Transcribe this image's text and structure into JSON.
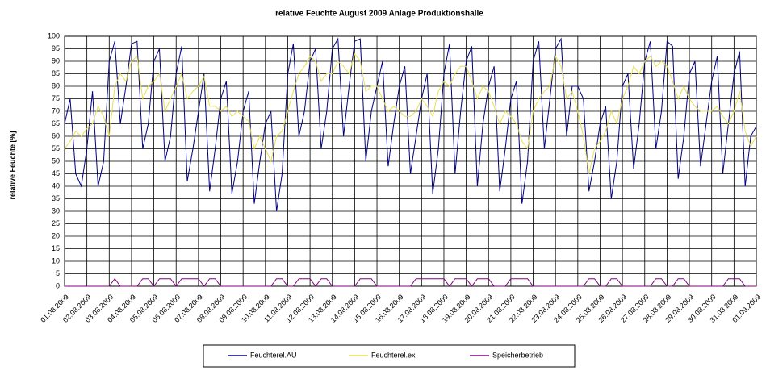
{
  "chart_data": {
    "type": "line",
    "title": "relative Feuchte August 2009 Anlage Produktionshalle",
    "y_label": "relative Feuchte [%]",
    "ylim": [
      0,
      100
    ],
    "yticks": [
      0,
      5,
      10,
      15,
      20,
      25,
      30,
      35,
      40,
      45,
      50,
      55,
      60,
      65,
      70,
      75,
      80,
      85,
      90,
      95,
      100
    ],
    "grid": true,
    "legend": "bottom",
    "categories": [
      "01.08.2009",
      null,
      null,
      null,
      "02.08.2009",
      null,
      null,
      null,
      "03.08.2009",
      null,
      null,
      null,
      "04.08.2009",
      null,
      null,
      null,
      "05.08.2009",
      null,
      null,
      null,
      "06.08.2009",
      null,
      null,
      null,
      "07.08.2009",
      null,
      null,
      null,
      "08.08.2009",
      null,
      null,
      null,
      "09.08.2009",
      null,
      null,
      null,
      "10.08.2009",
      null,
      null,
      null,
      "11.08.2009",
      null,
      null,
      null,
      "12.08.2009",
      null,
      null,
      null,
      "13.08.2009",
      null,
      null,
      null,
      "14.08.2009",
      null,
      null,
      null,
      "15.08.2009",
      null,
      null,
      null,
      "16.08.2009",
      null,
      null,
      null,
      "17.08.2009",
      null,
      null,
      null,
      "18.08.2009",
      null,
      null,
      null,
      "19.08.2009",
      null,
      null,
      null,
      "20.08.2009",
      null,
      null,
      null,
      "21.08.2009",
      null,
      null,
      null,
      "22.08.2009",
      null,
      null,
      null,
      "23.08.2009",
      null,
      null,
      null,
      "24.08.2009",
      null,
      null,
      null,
      "25.08.2009",
      null,
      null,
      null,
      "26.08.2009",
      null,
      null,
      null,
      "27.08.2009",
      null,
      null,
      null,
      "28.08.2009",
      null,
      null,
      null,
      "29.08.2009",
      null,
      null,
      null,
      "30.08.2009",
      null,
      null,
      null,
      "31.08.2009",
      null,
      null,
      null,
      "01.09.2009"
    ],
    "series": [
      {
        "name": "Feuchterel.AU",
        "color": "#000080",
        "values": [
          65,
          75,
          45,
          40,
          55,
          78,
          40,
          50,
          90,
          98,
          65,
          80,
          97,
          98,
          55,
          65,
          90,
          95,
          50,
          60,
          85,
          96,
          42,
          55,
          70,
          85,
          38,
          55,
          75,
          82,
          37,
          50,
          70,
          78,
          33,
          50,
          65,
          70,
          30,
          45,
          85,
          97,
          60,
          70,
          90,
          95,
          55,
          70,
          95,
          99,
          60,
          80,
          98,
          99,
          50,
          70,
          80,
          90,
          48,
          65,
          80,
          88,
          45,
          60,
          75,
          85,
          37,
          55,
          85,
          97,
          45,
          70,
          90,
          96,
          40,
          65,
          80,
          88,
          38,
          55,
          75,
          82,
          33,
          50,
          90,
          98,
          55,
          75,
          95,
          99,
          60,
          80,
          80,
          75,
          38,
          50,
          65,
          72,
          35,
          50,
          80,
          85,
          47,
          65,
          90,
          98,
          55,
          70,
          98,
          96,
          43,
          60,
          85,
          90,
          48,
          65,
          82,
          92,
          45,
          65,
          85,
          94,
          40,
          60,
          64
        ]
      },
      {
        "name": "Feuchterel.ex",
        "color": "#e8e050",
        "values": [
          55,
          58,
          62,
          60,
          63,
          65,
          72,
          68,
          60,
          80,
          85,
          82,
          90,
          92,
          75,
          80,
          82,
          85,
          70,
          75,
          80,
          85,
          75,
          78,
          80,
          84,
          72,
          72,
          70,
          72,
          68,
          70,
          68,
          66,
          55,
          60,
          55,
          50,
          60,
          62,
          70,
          78,
          85,
          88,
          92,
          90,
          82,
          85,
          85,
          90,
          88,
          85,
          93,
          90,
          78,
          80,
          80,
          75,
          70,
          72,
          70,
          68,
          68,
          70,
          75,
          72,
          68,
          78,
          82,
          80,
          85,
          88,
          88,
          82,
          75,
          80,
          78,
          72,
          65,
          70,
          68,
          65,
          58,
          55,
          70,
          75,
          78,
          80,
          92,
          88,
          75,
          78,
          70,
          60,
          45,
          55,
          58,
          62,
          70,
          65,
          75,
          80,
          88,
          85,
          90,
          92,
          88,
          90,
          88,
          82,
          75,
          80,
          75,
          72,
          70,
          70,
          70,
          72,
          68,
          65,
          70,
          78,
          62,
          56,
          60
        ]
      },
      {
        "name": "Speicherbetrieb",
        "color": "#800080",
        "values": [
          0,
          0,
          0,
          0,
          0,
          0,
          0,
          0,
          0,
          3,
          0,
          0,
          0,
          0,
          3,
          3,
          0,
          3,
          3,
          3,
          0,
          3,
          3,
          3,
          3,
          0,
          3,
          3,
          0,
          0,
          0,
          0,
          0,
          0,
          0,
          0,
          0,
          0,
          3,
          3,
          0,
          0,
          3,
          3,
          3,
          0,
          3,
          3,
          0,
          0,
          0,
          0,
          0,
          3,
          3,
          3,
          0,
          0,
          0,
          0,
          0,
          0,
          0,
          3,
          3,
          3,
          3,
          3,
          3,
          0,
          3,
          3,
          3,
          0,
          3,
          3,
          3,
          0,
          0,
          0,
          3,
          3,
          3,
          3,
          0,
          0,
          0,
          0,
          0,
          0,
          0,
          0,
          0,
          0,
          3,
          3,
          0,
          0,
          3,
          3,
          0,
          0,
          0,
          0,
          0,
          0,
          3,
          3,
          0,
          0,
          3,
          3,
          0,
          0,
          0,
          0,
          0,
          0,
          0,
          3,
          3,
          3,
          0,
          0,
          0
        ]
      }
    ]
  }
}
